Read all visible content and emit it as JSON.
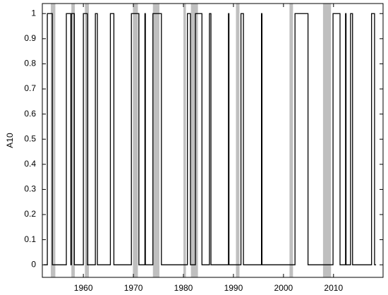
{
  "chart_data": {
    "type": "step",
    "y_label": "A10",
    "x": [
      1952.1,
      1952.8,
      1953.8,
      1956.6,
      1957.5,
      1957.6,
      1958.2,
      1960.0,
      1960.8,
      1962.4,
      1962.8,
      1965.4,
      1966.1,
      1969.6,
      1971.1,
      1972.3,
      1972.4,
      1973.9,
      1975.6,
      1980.8,
      1981.4,
      1982.4,
      1983.7,
      1985.2,
      1985.5,
      1989.0,
      1989.1,
      1991.5,
      1992.0,
      1995.6,
      1995.7,
      2002.3,
      2004.9,
      2009.9,
      2011.3,
      2012.4,
      2012.5,
      2013.4,
      2013.8,
      2017.6,
      2018.2,
      2018.5
    ],
    "values": [
      0,
      1,
      0,
      1,
      0,
      1,
      0,
      1,
      0,
      1,
      0,
      1,
      0,
      1,
      0,
      1,
      0,
      1,
      0,
      1,
      0,
      1,
      0,
      1,
      0,
      1,
      0,
      1,
      0,
      1,
      0,
      1,
      0,
      1,
      0,
      1,
      0,
      1,
      0,
      1,
      0,
      0
    ],
    "color": "#000000",
    "shaded_regions": [
      [
        1953.5,
        1954.4
      ],
      [
        1957.6,
        1958.3
      ],
      [
        1960.3,
        1961.1
      ],
      [
        1969.9,
        1970.9
      ],
      [
        1973.9,
        1975.2
      ],
      [
        1980.0,
        1980.5
      ],
      [
        1981.5,
        1982.9
      ],
      [
        1990.5,
        1991.2
      ],
      [
        2001.2,
        2001.9
      ],
      [
        2007.9,
        2009.5
      ]
    ],
    "shade_color": "#bfbfbf",
    "xlim": [
      1951.8,
      2019.9
    ],
    "ylim": [
      -0.05,
      1.04
    ],
    "xticks": [
      1960,
      1970,
      1980,
      1990,
      2000,
      2010
    ],
    "yticks": [
      0,
      0.1,
      0.2,
      0.3,
      0.4,
      0.5,
      0.6,
      0.7,
      0.8,
      0.9,
      1
    ],
    "grid": false
  }
}
